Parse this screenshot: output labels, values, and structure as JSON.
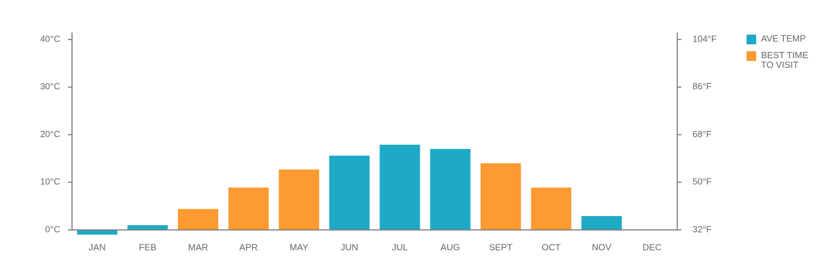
{
  "chart_data": {
    "type": "bar",
    "categories": [
      "JAN",
      "FEB",
      "MAR",
      "APR",
      "MAY",
      "JUN",
      "JUL",
      "AUG",
      "SEPT",
      "OCT",
      "NOV",
      "DEC"
    ],
    "series": [
      {
        "name": "AVE TEMP",
        "color": "#1eaac5",
        "values": [
          -1,
          1.0,
          null,
          null,
          null,
          15.6,
          17.9,
          17.0,
          null,
          null,
          2.9,
          null
        ]
      },
      {
        "name": "BEST TIME TO VISIT",
        "color": "#fd9a31",
        "values": [
          null,
          null,
          4.4,
          8.9,
          12.7,
          null,
          null,
          null,
          14.0,
          8.9,
          null,
          null
        ]
      }
    ],
    "ylim": [
      0,
      40
    ],
    "yticks": [
      {
        "value": 0,
        "label": "0°C"
      },
      {
        "value": 10,
        "label": "10°C"
      },
      {
        "value": 20,
        "label": "20°C"
      },
      {
        "value": 30,
        "label": "30°C"
      },
      {
        "value": 40,
        "label": "40°C"
      }
    ],
    "y2lim": [
      32,
      104
    ],
    "y2ticks": [
      {
        "value": 32,
        "label": "32°F"
      },
      {
        "value": 50,
        "label": "50°F"
      },
      {
        "value": 68,
        "label": "68°F"
      },
      {
        "value": 86,
        "label": "86°F"
      },
      {
        "value": 104,
        "label": "104°F"
      }
    ],
    "legend": "right"
  }
}
